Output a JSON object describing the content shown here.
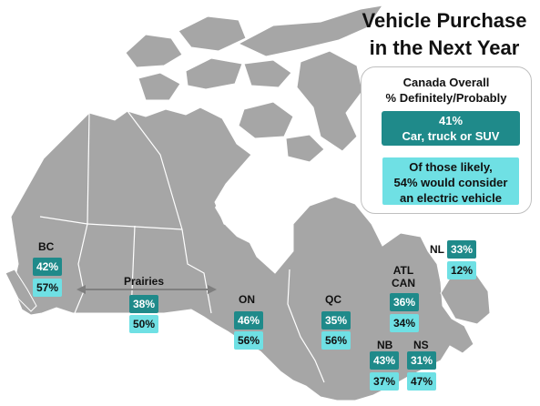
{
  "title": {
    "line1": "Vehicle Purchase",
    "line2": "in the Next Year"
  },
  "summary": {
    "line1": "Canada Overall",
    "line2": "% Definitely/Probably",
    "car_value": "41%",
    "car_label": "Car, truck or SUV",
    "ev_line1": "Of those likely,",
    "ev_line2": "54% would consider",
    "ev_line3": "an electric vehicle"
  },
  "regions": {
    "bc": {
      "name": "BC",
      "car": "42%",
      "ev": "57%"
    },
    "prairies": {
      "name": "Prairies",
      "car": "38%",
      "ev": "50%"
    },
    "on": {
      "name": "ON",
      "car": "46%",
      "ev": "56%"
    },
    "qc": {
      "name": "QC",
      "car": "35%",
      "ev": "56%"
    },
    "nl": {
      "name": "NL",
      "car": "33%",
      "ev": "12%"
    },
    "atl": {
      "name_line1": "ATL",
      "name_line2": "CAN",
      "car": "36%",
      "ev": "34%"
    },
    "nb": {
      "name": "NB",
      "car": "43%",
      "ev": "37%"
    },
    "ns": {
      "name": "NS",
      "car": "31%",
      "ev": "47%"
    }
  },
  "colors": {
    "map_fill": "#a6a6a6",
    "map_border": "#ffffff",
    "car_box": "#1f8a8a",
    "ev_box": "#6fe0e4",
    "arrow": "#7f7f7f"
  }
}
